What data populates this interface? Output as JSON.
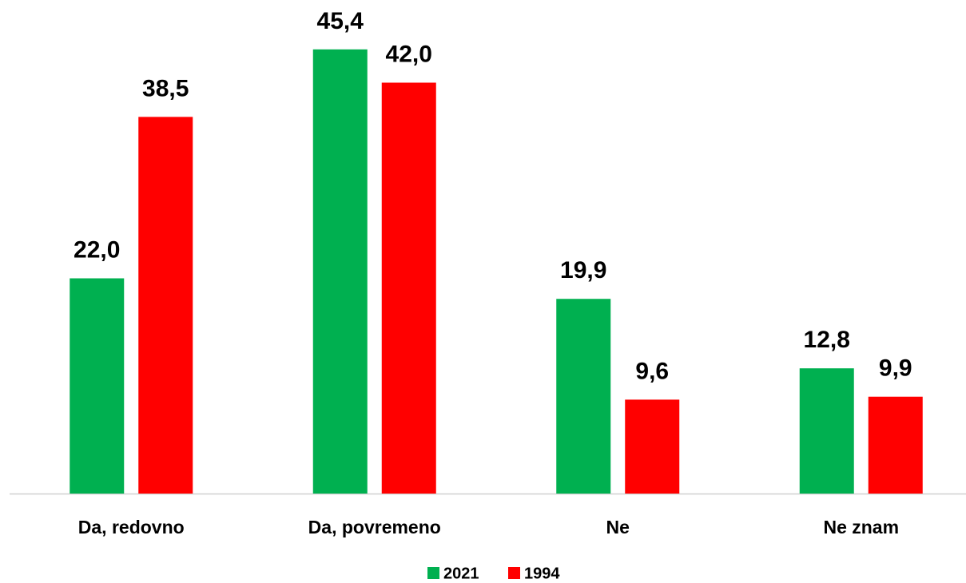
{
  "chart_data": {
    "type": "bar",
    "categories": [
      "Da, redovno",
      "Da, povremeno",
      "Ne",
      "Ne znam"
    ],
    "series": [
      {
        "name": "2021",
        "color": "#00b050",
        "values": [
          22.0,
          45.4,
          19.9,
          12.8
        ],
        "value_labels": [
          "22,0",
          "45,4",
          "19,9",
          "12,8"
        ]
      },
      {
        "name": "1994",
        "color": "#ff0000",
        "values": [
          38.5,
          42.0,
          9.6,
          9.9
        ],
        "value_labels": [
          "38,5",
          "42,0",
          "9,6",
          "9,9"
        ]
      }
    ],
    "legend": "bottom"
  }
}
